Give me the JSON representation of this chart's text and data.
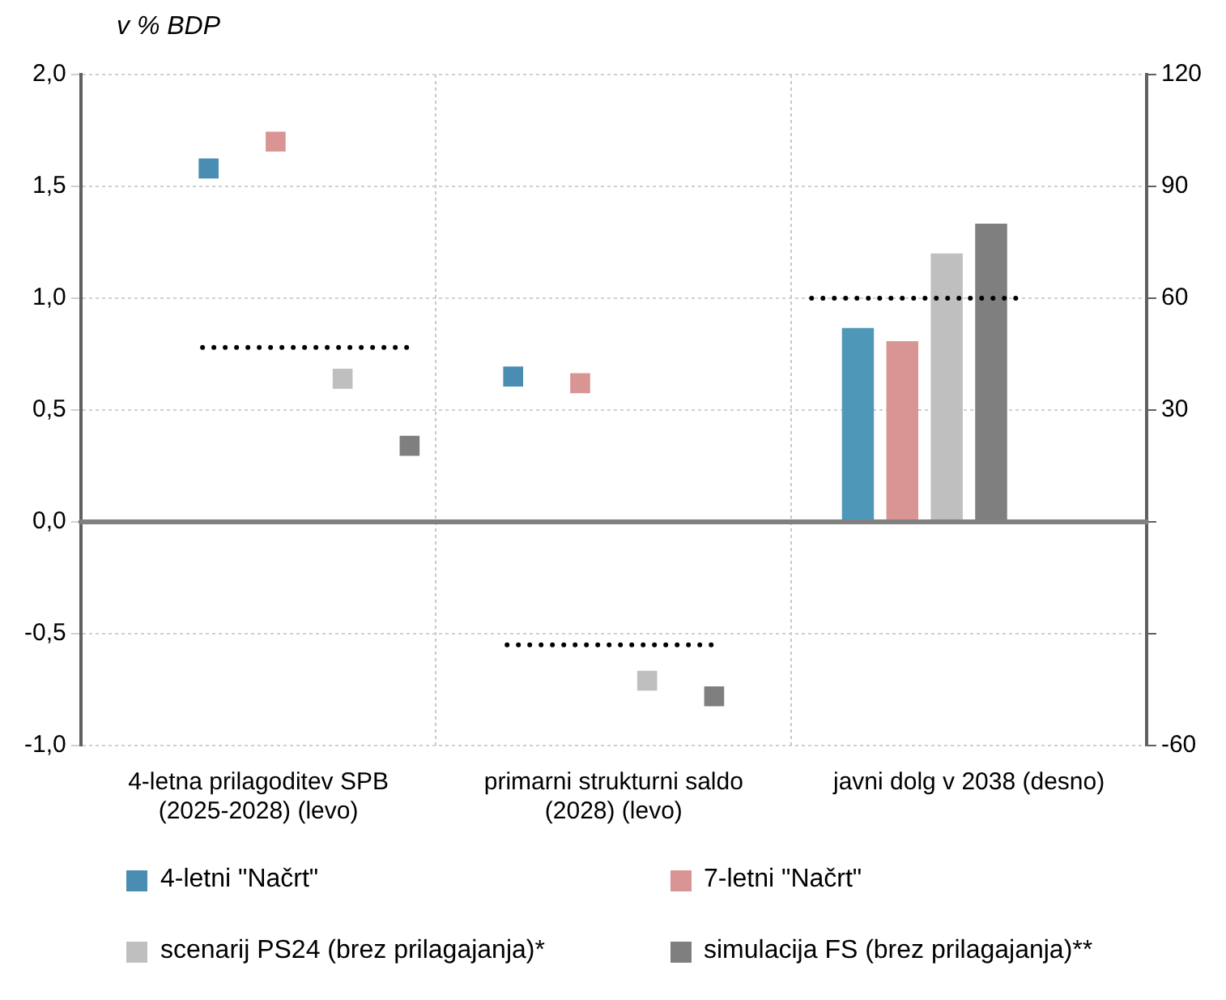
{
  "chart_data": {
    "type": "bar",
    "ylabel": "v % BDP",
    "categories": [
      "4-letna prilagoditev SPB (2025-2028) (levo)",
      "primarni strukturni saldo (2028) (levo)",
      "javni dolg v 2038 (desno)"
    ],
    "series": [
      {
        "name": "4-letni \"Načrt\"",
        "type": "scatter",
        "color": "#4a8db2",
        "values": [
          1.58,
          0.65,
          null
        ]
      },
      {
        "name": "7-letni \"Načrt\"",
        "type": "scatter",
        "color": "#d99593",
        "values": [
          1.7,
          0.62,
          null
        ]
      },
      {
        "name": "scenarij PS24 (brez prilagajanja)*",
        "type": "scatter",
        "color": "#bfbfbf",
        "values": [
          0.64,
          -0.71,
          null
        ]
      },
      {
        "name": "simulacija FS (brez prilagajanja)**",
        "type": "scatter",
        "color": "#7f7f7f",
        "values": [
          0.34,
          -0.78,
          null
        ]
      },
      {
        "axis": "y2",
        "color": "#4f97b8",
        "values": [
          null,
          null,
          52
        ]
      },
      {
        "axis": "y2",
        "color": "#d99593",
        "values": [
          null,
          null,
          48.5
        ]
      },
      {
        "axis": "y2",
        "color": "#bfbfbf",
        "values": [
          null,
          null,
          72
        ]
      },
      {
        "axis": "y2",
        "color": "#7f7f7f",
        "values": [
          null,
          null,
          80
        ]
      }
    ],
    "ref_lines": [
      {
        "axis": "y",
        "value": 0.78,
        "color": "#000000",
        "line_style": "dotted"
      },
      {
        "axis": "y",
        "value": -0.55,
        "color": "#000000",
        "line_style": "dotted"
      },
      {
        "axis": "y2",
        "value": 60,
        "color": "#000000",
        "line_style": "dotted"
      },
      {
        "axis": "y",
        "value": 0,
        "color": "#808080"
      }
    ],
    "ylim": [
      -1,
      2
    ],
    "yticks": [
      {
        "value": 2,
        "label": "2,0"
      },
      {
        "value": 1.5,
        "label": "1,5"
      },
      {
        "value": 1,
        "label": "1,0"
      },
      {
        "value": 0.5,
        "label": "0,5"
      },
      {
        "value": 0,
        "label": "0,0"
      },
      {
        "value": -0.5,
        "label": "-0,5"
      },
      {
        "value": -1,
        "label": "-1,0"
      }
    ],
    "y2lim": [
      -60,
      120
    ],
    "y2ticks": [
      120,
      90,
      60,
      30,
      {
        "value": 0,
        "label": null
      },
      {
        "value": -30,
        "label": null
      },
      -60
    ],
    "marker": "square",
    "grid": true,
    "legend": "bottom"
  }
}
